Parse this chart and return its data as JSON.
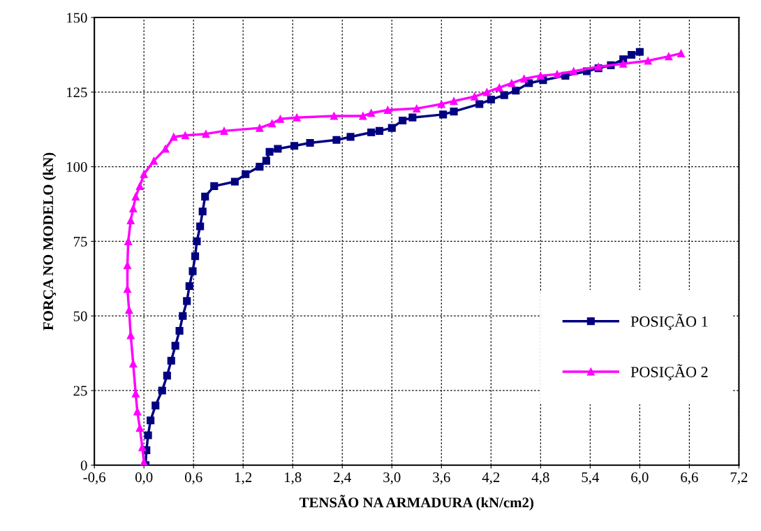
{
  "chart_data": {
    "type": "line",
    "xlabel": "TENSÃO NA ARMADURA (kN/cm2)",
    "ylabel": "FORÇA NO MODELO (kN)",
    "xlim": [
      -0.6,
      7.2
    ],
    "ylim": [
      0,
      150
    ],
    "xticks": [
      {
        "value": -0.6,
        "label": "-0,6"
      },
      {
        "value": 0,
        "label": "0,0"
      },
      {
        "value": 0.6,
        "label": "0,6"
      },
      {
        "value": 1.2,
        "label": "1,2"
      },
      {
        "value": 1.8,
        "label": "1,8"
      },
      {
        "value": 2.4,
        "label": "2,4"
      },
      {
        "value": 3.0,
        "label": "3,0"
      },
      {
        "value": 3.6,
        "label": "3,6"
      },
      {
        "value": 4.2,
        "label": "4,2"
      },
      {
        "value": 4.8,
        "label": "4,8"
      },
      {
        "value": 5.4,
        "label": "5,4"
      },
      {
        "value": 6.0,
        "label": "6,0"
      },
      {
        "value": 6.6,
        "label": "6,6"
      },
      {
        "value": 7.2,
        "label": "7,2"
      }
    ],
    "yticks": [
      0,
      25,
      50,
      75,
      100,
      125,
      150
    ],
    "grid": true,
    "legend": "bottom right",
    "line_style": "solid",
    "series": [
      {
        "name": "POSIÇÃO 1",
        "color": "#000080",
        "marker": "square",
        "x": [
          0.02,
          0.03,
          0.05,
          0.08,
          0.14,
          0.22,
          0.28,
          0.33,
          0.38,
          0.43,
          0.47,
          0.52,
          0.55,
          0.59,
          0.62,
          0.64,
          0.68,
          0.71,
          0.74,
          0.85,
          1.1,
          1.23,
          1.4,
          1.48,
          1.52,
          1.62,
          1.82,
          2.01,
          2.33,
          2.5,
          2.75,
          2.85,
          3.0,
          3.13,
          3.25,
          3.62,
          3.75,
          4.06,
          4.2,
          4.36,
          4.5,
          4.66,
          4.83,
          5.1,
          5.36,
          5.5,
          5.65,
          5.8,
          5.9,
          6.0
        ],
        "values": [
          0,
          5,
          10,
          15,
          20,
          25,
          30,
          35,
          40,
          45,
          50,
          55,
          60,
          65,
          70,
          75,
          80,
          85,
          90,
          93.5,
          95,
          97.5,
          100,
          102,
          105,
          106,
          107,
          108,
          109,
          110,
          111.5,
          112,
          113,
          115.5,
          116.5,
          117.5,
          118.5,
          121,
          122.5,
          124,
          125.5,
          128,
          129,
          130.5,
          132,
          133,
          134,
          136,
          137.5,
          138.5
        ]
      },
      {
        "name": "POSIÇÃO 2",
        "color": "#ff00ff",
        "marker": "triangle",
        "x": [
          0,
          -0.02,
          -0.05,
          -0.08,
          -0.1,
          -0.13,
          -0.16,
          -0.18,
          -0.2,
          -0.2,
          -0.19,
          -0.16,
          -0.13,
          -0.1,
          -0.05,
          0,
          0.12,
          0.26,
          0.36,
          0.5,
          0.75,
          0.97,
          1.4,
          1.55,
          1.65,
          1.85,
          2.3,
          2.65,
          2.75,
          2.95,
          3.3,
          3.6,
          3.75,
          4.0,
          4.15,
          4.3,
          4.45,
          4.6,
          4.8,
          5.0,
          5.2,
          5.5,
          5.8,
          6.1,
          6.35,
          6.5
        ],
        "values": [
          1,
          6,
          12.5,
          18,
          24,
          34,
          43.5,
          52,
          59,
          67,
          75,
          82,
          86,
          90,
          93.5,
          97.5,
          102,
          106,
          110,
          110.5,
          111,
          112,
          113,
          114.5,
          116,
          116.5,
          117,
          117,
          118,
          119,
          119.5,
          121,
          122,
          123.5,
          125,
          126.5,
          128,
          129.5,
          130.5,
          131,
          132,
          133.5,
          134.5,
          135.5,
          137,
          138
        ]
      }
    ]
  }
}
